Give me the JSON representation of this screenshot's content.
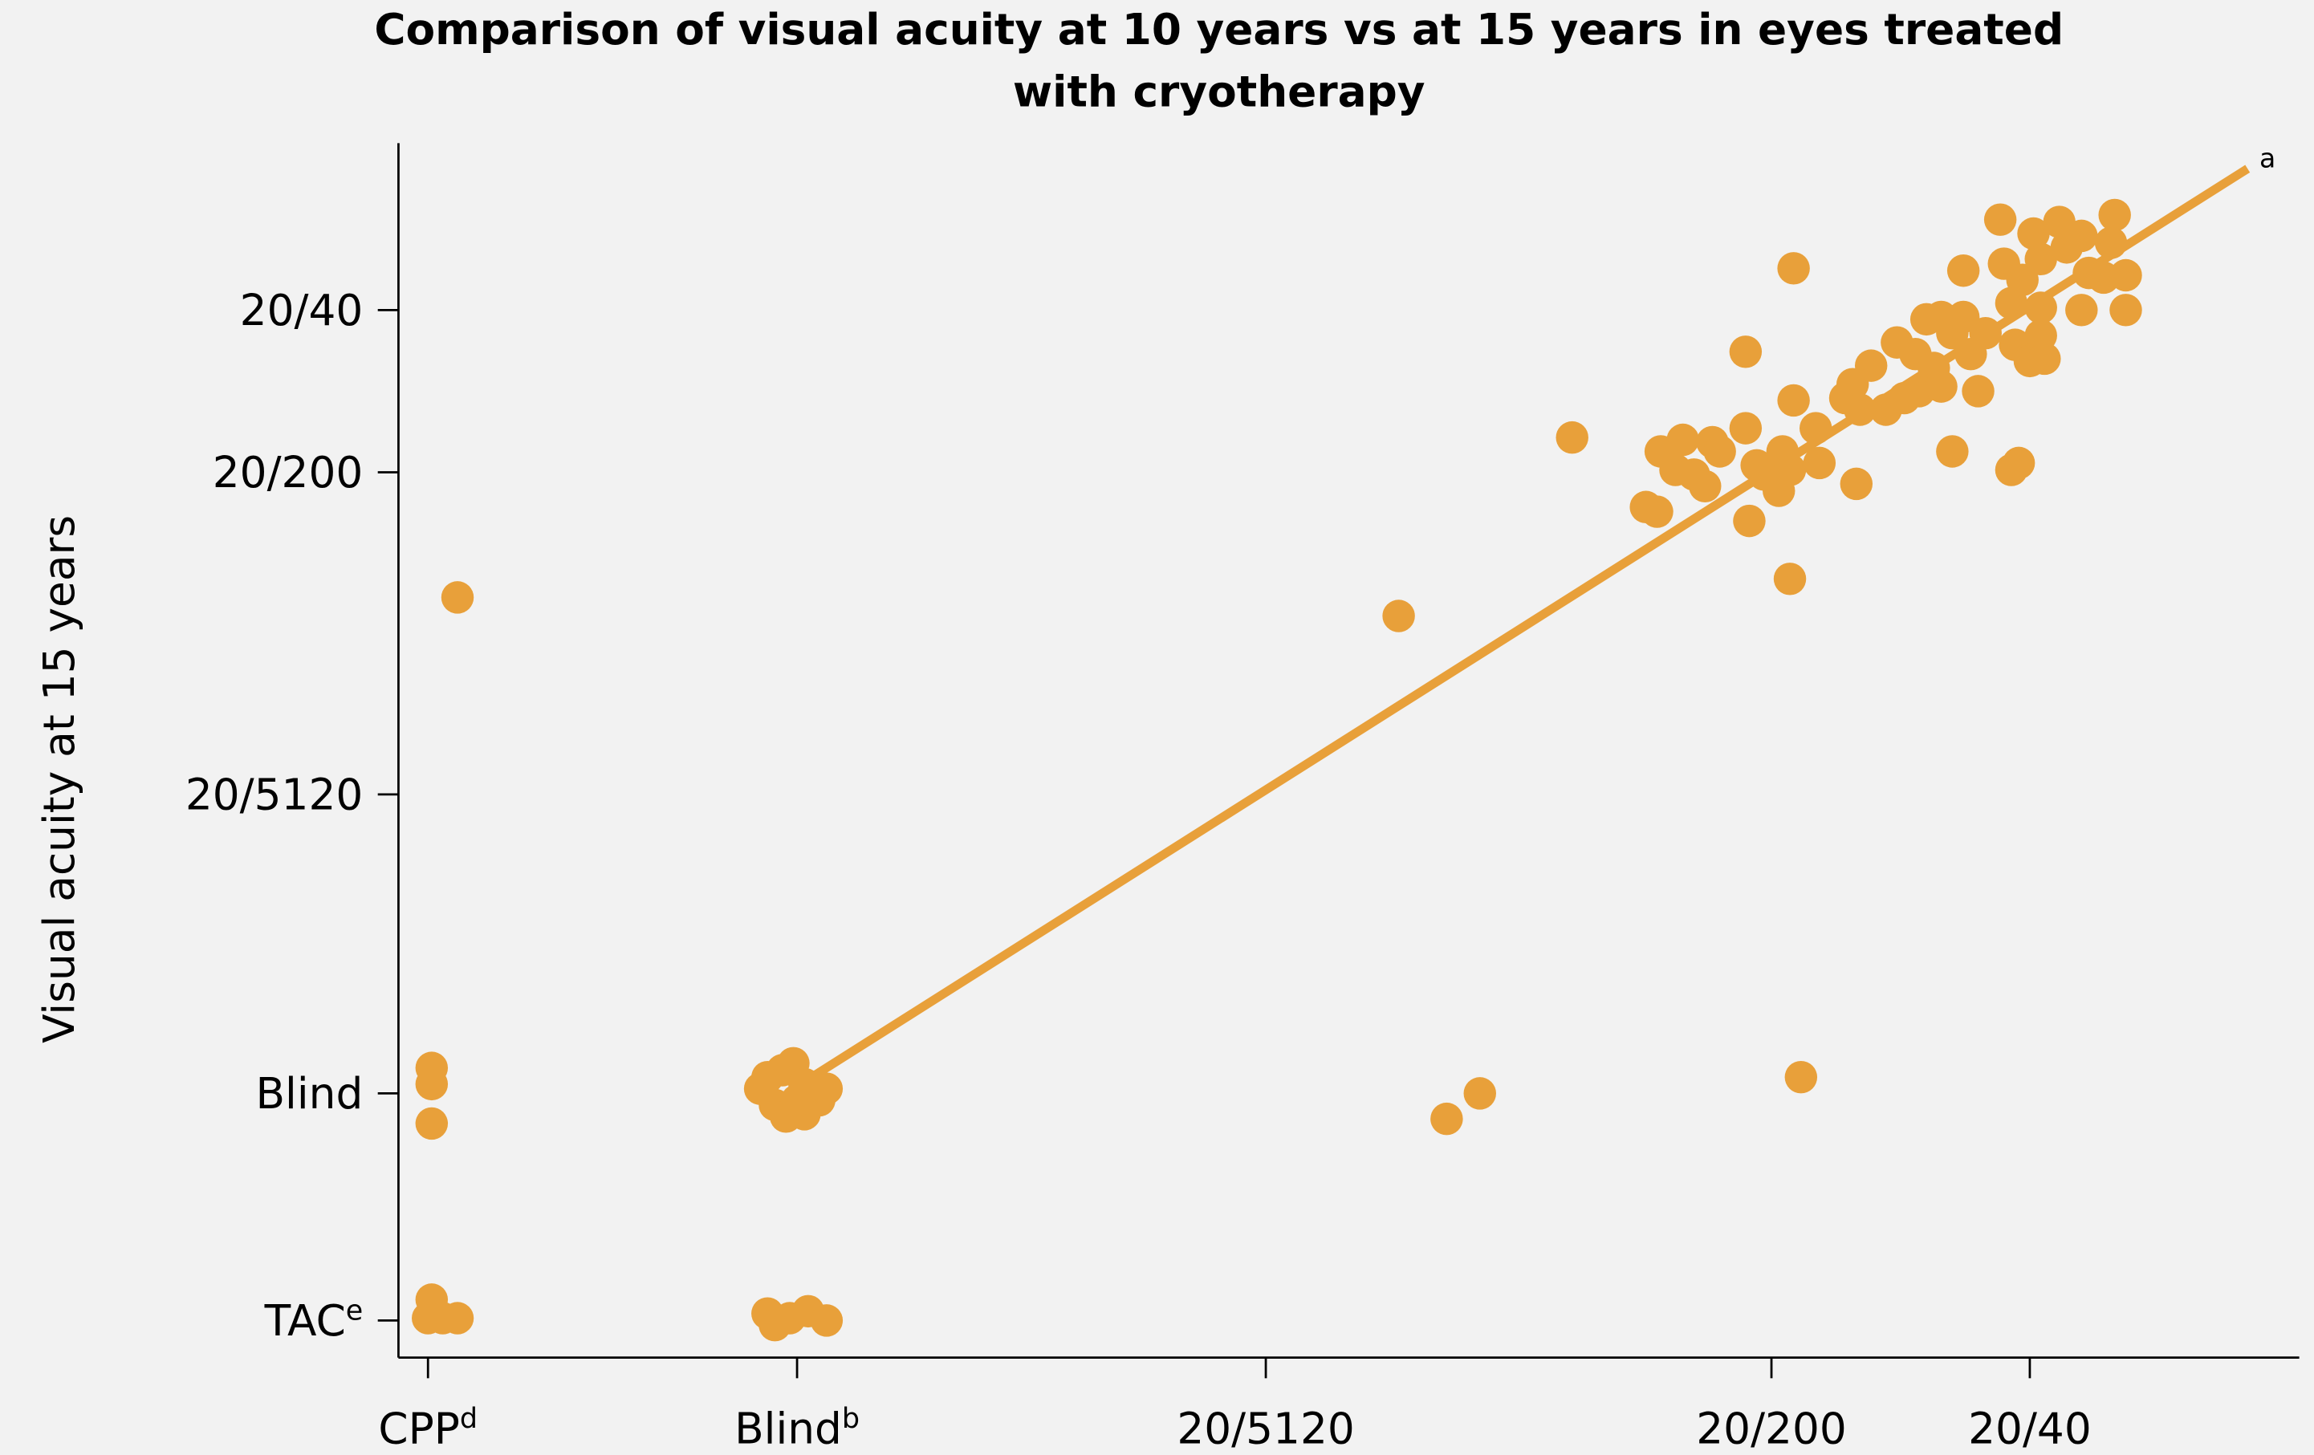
{
  "chart_data": {
    "type": "scatter",
    "title": [
      "Comparison of visual acuity at 10 years vs at 15 years in eyes treated",
      "with cryotherapy"
    ],
    "ylabel": "Visual acuity at 15 years",
    "color": "#e8a03a",
    "xlim": [
      -4.72,
      0.43
    ],
    "ylim": [
      -4.82,
      0.42
    ],
    "xticks": [
      {
        "value": -4.64,
        "label": "CPP",
        "superscript": "d"
      },
      {
        "value": -3.64,
        "label": "Blind",
        "superscript": "b"
      },
      {
        "value": -2.37,
        "label": "20/5120"
      },
      {
        "value": -1.0,
        "label": "20/200"
      },
      {
        "value": -0.3,
        "label": "20/40"
      }
    ],
    "yticks": [
      {
        "value": -0.3,
        "label": "20/40"
      },
      {
        "value": -1.0,
        "label": "20/200"
      },
      {
        "value": -2.39,
        "label": "20/5120"
      },
      {
        "value": -3.68,
        "label": "Blind"
      },
      {
        "value": -4.66,
        "label": "TAC",
        "superscript": "e"
      }
    ],
    "x": [
      -4.63,
      -4.63,
      -4.63,
      -4.56,
      -4.63,
      -4.64,
      -4.6,
      -4.56,
      -3.72,
      -3.68,
      -3.65,
      -3.62,
      -3.58,
      -3.74,
      -3.7,
      -3.67,
      -3.62,
      -3.56,
      -3.64,
      -3.72,
      -3.7,
      -3.66,
      -3.61,
      -3.56,
      -2.01,
      -1.88,
      -1.79,
      -0.92,
      -1.54,
      -0.95,
      -0.94,
      -1.34,
      -1.31,
      -1.3,
      -1.26,
      -1.24,
      -1.21,
      -1.18,
      -1.16,
      -1.14,
      -1.07,
      -1.07,
      -1.06,
      -1.04,
      -1.02,
      -0.98,
      -0.97,
      -0.95,
      -0.94,
      -0.88,
      -0.87,
      -0.77,
      -0.8,
      -0.78,
      -0.76,
      -0.73,
      -0.69,
      -0.66,
      -0.64,
      -0.61,
      -0.6,
      -0.58,
      -0.56,
      -0.54,
      -0.54,
      -0.51,
      -0.51,
      -0.48,
      -0.48,
      -0.46,
      -0.44,
      -0.42,
      -0.38,
      -0.37,
      -0.35,
      -0.33,
      -0.35,
      -0.34,
      -0.32,
      -0.3,
      -0.29,
      -0.27,
      -0.27,
      -0.27,
      -0.26,
      -0.22,
      -0.2,
      -0.16,
      -0.16,
      -0.14,
      -0.1,
      -0.08,
      -0.07,
      -0.04,
      -0.04
    ],
    "y": [
      -3.57,
      -3.64,
      -3.81,
      -1.54,
      -4.57,
      -4.65,
      -4.65,
      -4.65,
      -3.61,
      -3.58,
      -3.55,
      -3.64,
      -3.71,
      -3.66,
      -3.73,
      -3.78,
      -3.77,
      -3.66,
      -3.71,
      -4.63,
      -4.68,
      -4.65,
      -4.62,
      -4.66,
      -1.62,
      -3.79,
      -3.68,
      -3.61,
      -0.85,
      -1.46,
      -0.12,
      -1.15,
      -1.17,
      -0.91,
      -0.99,
      -0.86,
      -1.01,
      -1.06,
      -0.87,
      -0.91,
      -0.48,
      -0.81,
      -1.21,
      -0.97,
      -1.01,
      -1.08,
      -0.91,
      -0.99,
      -0.69,
      -0.81,
      -0.96,
      -1.05,
      -0.68,
      -0.62,
      -0.73,
      -0.54,
      -0.73,
      -0.44,
      -0.68,
      -0.49,
      -0.65,
      -0.34,
      -0.55,
      -0.63,
      -0.33,
      -0.91,
      -0.4,
      -0.33,
      -0.13,
      -0.49,
      -0.65,
      -0.4,
      0.09,
      -0.1,
      -0.99,
      -0.96,
      -0.27,
      -0.45,
      -0.17,
      -0.52,
      0.03,
      -0.08,
      -0.29,
      -0.41,
      -0.51,
      0.08,
      -0.03,
      0.02,
      -0.3,
      -0.14,
      -0.16,
      -0.01,
      0.11,
      -0.3,
      -0.15
    ],
    "fit_line": {
      "x": [
        -3.62,
        0.29
      ],
      "y": [
        -3.63,
        0.31
      ],
      "annotation": "a"
    }
  }
}
